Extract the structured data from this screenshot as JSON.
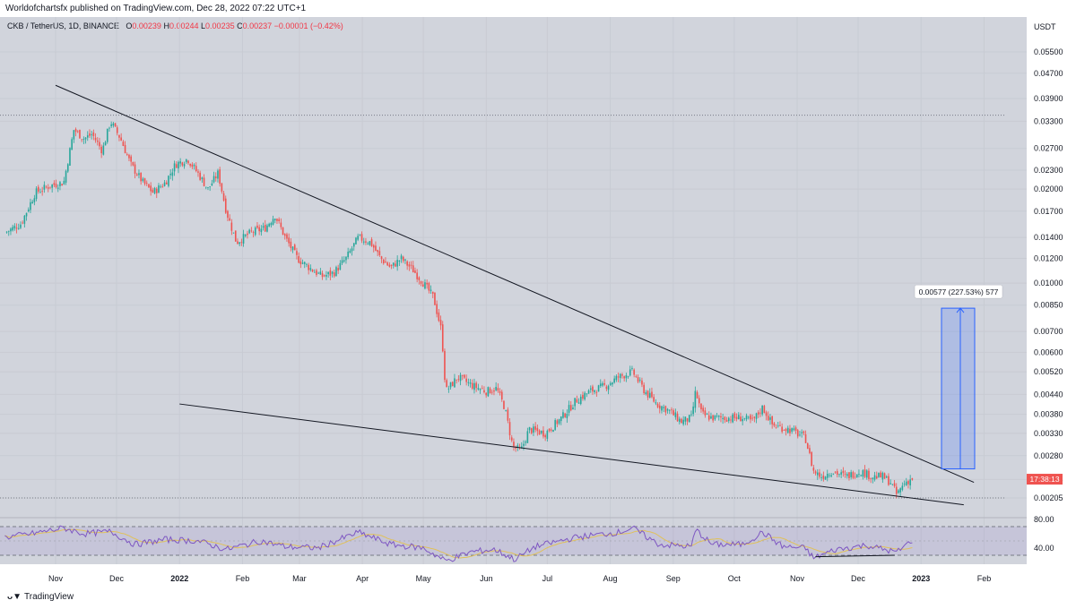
{
  "header": {
    "publisher": "Worldofchartsfx published on TradingView.com, Dec 28, 2022 07:22 UTC+1"
  },
  "legend": {
    "symbol": "CKB / TetherUS, 1D, BINANCE",
    "o_label": "O",
    "open": "0.00239",
    "h_label": "H",
    "high": "0.00244",
    "l_label": "L",
    "low": "0.00235",
    "c_label": "C",
    "close": "0.00237",
    "change": "−0.00001 (−0.42%)"
  },
  "footer": {
    "brand": "TradingView"
  },
  "chart_data": [
    {
      "type": "candlestick",
      "title": "CKB / TetherUS, 1D, BINANCE",
      "ylabel": "USDT",
      "y_scale": "log",
      "ylim": [
        0.0019,
        0.06
      ],
      "y_ticks": [
        "0.05500",
        "0.04700",
        "0.03900",
        "0.03300",
        "0.02700",
        "0.02300",
        "0.02000",
        "0.01700",
        "0.01400",
        "0.01200",
        "0.01000",
        "0.00850",
        "0.00700",
        "0.00600",
        "0.00520",
        "0.00440",
        "0.00380",
        "0.00330",
        "0.00280",
        "0.00235",
        "0.00205"
      ],
      "x_ticks": [
        "Nov",
        "Dec",
        "2022",
        "Feb",
        "Mar",
        "Apr",
        "May",
        "Jun",
        "Jul",
        "Aug",
        "Sep",
        "Oct",
        "Nov",
        "Dec",
        "2023",
        "Feb"
      ],
      "last_price": "0.00237",
      "countdown": "17:38:13",
      "close_path": [
        [
          "2021-10-07",
          0.0145
        ],
        [
          "2021-10-15",
          0.0155
        ],
        [
          "2021-10-22",
          0.0195
        ],
        [
          "2021-10-29",
          0.0205
        ],
        [
          "2021-11-05",
          0.021
        ],
        [
          "2021-11-10",
          0.031
        ],
        [
          "2021-11-15",
          0.029
        ],
        [
          "2021-11-19",
          0.03
        ],
        [
          "2021-11-24",
          0.0265
        ],
        [
          "2021-11-28",
          0.033
        ],
        [
          "2021-12-03",
          0.029
        ],
        [
          "2021-12-08",
          0.024
        ],
        [
          "2021-12-14",
          0.021
        ],
        [
          "2021-12-19",
          0.0195
        ],
        [
          "2021-12-25",
          0.021
        ],
        [
          "2021-12-30",
          0.024
        ],
        [
          "2022-01-05",
          0.025
        ],
        [
          "2022-01-10",
          0.0225
        ],
        [
          "2022-01-15",
          0.02
        ],
        [
          "2022-01-20",
          0.0225
        ],
        [
          "2022-01-24",
          0.017
        ],
        [
          "2022-01-29",
          0.0135
        ],
        [
          "2022-02-05",
          0.0145
        ],
        [
          "2022-02-12",
          0.015
        ],
        [
          "2022-02-17",
          0.0165
        ],
        [
          "2022-02-22",
          0.014
        ],
        [
          "2022-02-28",
          0.012
        ],
        [
          "2022-03-06",
          0.0112
        ],
        [
          "2022-03-12",
          0.0105
        ],
        [
          "2022-03-18",
          0.0108
        ],
        [
          "2022-03-24",
          0.012
        ],
        [
          "2022-03-30",
          0.014
        ],
        [
          "2022-04-05",
          0.0135
        ],
        [
          "2022-04-10",
          0.012
        ],
        [
          "2022-04-15",
          0.0112
        ],
        [
          "2022-04-20",
          0.012
        ],
        [
          "2022-04-26",
          0.011
        ],
        [
          "2022-05-01",
          0.01
        ],
        [
          "2022-05-06",
          0.009
        ],
        [
          "2022-05-10",
          0.007
        ],
        [
          "2022-05-12",
          0.0045
        ],
        [
          "2022-05-18",
          0.005
        ],
        [
          "2022-05-25",
          0.0047
        ],
        [
          "2022-06-01",
          0.0045
        ],
        [
          "2022-06-06",
          0.0046
        ],
        [
          "2022-06-10",
          0.004
        ],
        [
          "2022-06-14",
          0.003
        ],
        [
          "2022-06-18",
          0.0029
        ],
        [
          "2022-06-22",
          0.0034
        ],
        [
          "2022-06-30",
          0.0033
        ],
        [
          "2022-07-08",
          0.0037
        ],
        [
          "2022-07-15",
          0.0042
        ],
        [
          "2022-07-22",
          0.0045
        ],
        [
          "2022-07-30",
          0.0047
        ],
        [
          "2022-08-05",
          0.005
        ],
        [
          "2022-08-12",
          0.0052
        ],
        [
          "2022-08-18",
          0.0045
        ],
        [
          "2022-08-24",
          0.0041
        ],
        [
          "2022-08-30",
          0.0039
        ],
        [
          "2022-09-05",
          0.0036
        ],
        [
          "2022-09-10",
          0.0037
        ],
        [
          "2022-09-12",
          0.0045
        ],
        [
          "2022-09-15",
          0.0038
        ],
        [
          "2022-09-20",
          0.0037
        ],
        [
          "2022-09-28",
          0.0037
        ],
        [
          "2022-10-05",
          0.0037
        ],
        [
          "2022-10-10",
          0.0036
        ],
        [
          "2022-10-15",
          0.004
        ],
        [
          "2022-10-20",
          0.0035
        ],
        [
          "2022-10-28",
          0.0034
        ],
        [
          "2022-11-05",
          0.0032
        ],
        [
          "2022-11-09",
          0.0025
        ],
        [
          "2022-11-13",
          0.0024
        ],
        [
          "2022-11-18",
          0.0025
        ],
        [
          "2022-11-25",
          0.0024
        ],
        [
          "2022-12-02",
          0.0025
        ],
        [
          "2022-12-08",
          0.0024
        ],
        [
          "2022-12-13",
          0.0024
        ],
        [
          "2022-12-17",
          0.0023
        ],
        [
          "2022-12-20",
          0.0021
        ],
        [
          "2022-12-24",
          0.0023
        ],
        [
          "2022-12-28",
          0.00237
        ]
      ],
      "annotations": {
        "upper_trendline": [
          [
            "2021-11-01",
            0.043
          ],
          [
            "2023-01-27",
            0.0023
          ]
        ],
        "lower_trendline": [
          [
            "2022-01-01",
            0.0041
          ],
          [
            "2023-01-22",
            0.00195
          ]
        ],
        "resistance_level": 0.0345,
        "support_level": 0.00205,
        "projection": {
          "label": "0.00577 (227.53%) 577",
          "from": 0.00254,
          "to": 0.00831
        }
      }
    },
    {
      "type": "line",
      "title": "RSI",
      "ylim": [
        20,
        90
      ],
      "y_ticks": [
        "80.00",
        "40.00"
      ],
      "series": [
        {
          "points": [
            [
              "2021-10-07",
              55
            ],
            [
              "2021-10-20",
              60
            ],
            [
              "2021-11-05",
              68
            ],
            [
              "2021-11-15",
              60
            ],
            [
              "2021-11-28",
              63
            ],
            [
              "2021-12-10",
              45
            ],
            [
              "2021-12-25",
              52
            ],
            [
              "2022-01-10",
              50
            ],
            [
              "2022-01-24",
              38
            ],
            [
              "2022-02-10",
              50
            ],
            [
              "2022-02-22",
              42
            ],
            [
              "2022-03-10",
              40
            ],
            [
              "2022-03-30",
              62
            ],
            [
              "2022-04-15",
              45
            ],
            [
              "2022-05-01",
              40
            ],
            [
              "2022-05-12",
              22
            ],
            [
              "2022-05-25",
              35
            ],
            [
              "2022-06-05",
              38
            ],
            [
              "2022-06-15",
              24
            ],
            [
              "2022-06-25",
              42
            ],
            [
              "2022-07-15",
              55
            ],
            [
              "2022-08-05",
              62
            ],
            [
              "2022-08-12",
              68
            ],
            [
              "2022-08-25",
              45
            ],
            [
              "2022-09-10",
              42
            ],
            [
              "2022-09-12",
              66
            ],
            [
              "2022-09-20",
              45
            ],
            [
              "2022-10-05",
              45
            ],
            [
              "2022-10-15",
              62
            ],
            [
              "2022-10-25",
              42
            ],
            [
              "2022-11-05",
              40
            ],
            [
              "2022-11-09",
              26
            ],
            [
              "2022-11-20",
              38
            ],
            [
              "2022-12-05",
              44
            ],
            [
              "2022-12-20",
              34
            ],
            [
              "2022-12-28",
              52
            ]
          ]
        }
      ],
      "bands": [
        30,
        50,
        70
      ],
      "divergence_line": [
        [
          "2022-11-10",
          28
        ],
        [
          "2022-12-19",
          30
        ]
      ]
    }
  ]
}
